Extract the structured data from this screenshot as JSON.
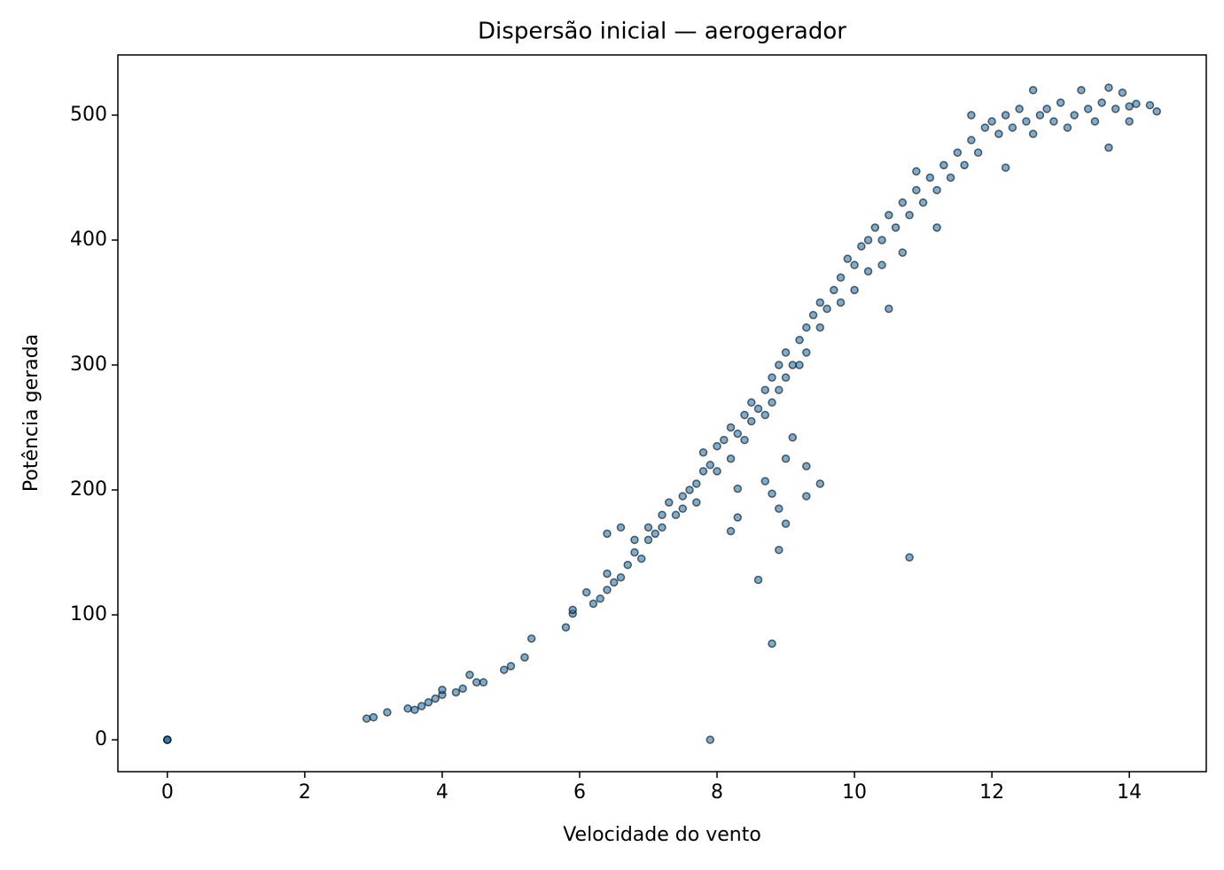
{
  "chart_data": {
    "type": "scatter",
    "title": "Dispersão inicial — aerogerador",
    "xlabel": "Velocidade do vento",
    "ylabel": "Potência gerada",
    "xlim": [
      -0.72,
      15.12
    ],
    "ylim": [
      -25.5,
      548.2
    ],
    "xticks": [
      0,
      2,
      4,
      6,
      8,
      10,
      12,
      14
    ],
    "yticks": [
      0,
      100,
      200,
      300,
      400,
      500
    ],
    "grid": false,
    "color": "#1f77b4",
    "edgecolor": "#000000",
    "x": [
      0,
      0,
      0,
      7.9,
      8.8,
      8.6,
      10.8,
      8.9,
      9.3,
      9.5,
      9.3,
      9.0,
      8.9,
      8.8,
      8.3,
      8.2,
      8.7,
      9.0,
      9.1,
      8.3,
      6.4,
      6.6,
      2.9,
      3.0,
      3.2,
      3.5,
      3.6,
      3.7,
      3.8,
      3.9,
      4.0,
      4.0,
      4.2,
      4.3,
      4.4,
      4.5,
      4.6,
      4.9,
      5.0,
      5.2,
      5.3,
      5.8,
      5.9,
      5.9,
      6.1,
      6.2,
      6.3,
      6.4,
      6.4,
      6.5,
      6.6,
      6.7,
      6.8,
      6.8,
      6.9,
      7.0,
      7.0,
      7.1,
      7.2,
      7.2,
      7.3,
      7.4,
      7.5,
      7.5,
      7.6,
      7.7,
      7.7,
      7.8,
      7.8,
      7.9,
      8.0,
      8.0,
      8.1,
      8.2,
      8.2,
      8.3,
      8.4,
      8.4,
      8.5,
      8.5,
      8.6,
      8.7,
      8.7,
      8.8,
      8.8,
      8.9,
      8.9,
      9.0,
      9.0,
      9.1,
      9.2,
      9.2,
      9.3,
      9.3,
      9.4,
      9.5,
      9.5,
      9.6,
      9.7,
      9.8,
      9.8,
      9.9,
      10.0,
      10.0,
      10.1,
      10.2,
      10.2,
      10.3,
      10.4,
      10.4,
      10.5,
      10.5,
      10.6,
      10.7,
      10.7,
      10.8,
      10.9,
      10.9,
      11.0,
      11.1,
      11.2,
      11.2,
      11.3,
      11.4,
      11.5,
      11.6,
      11.7,
      11.7,
      11.8,
      11.9,
      12.0,
      12.1,
      12.2,
      12.2,
      12.3,
      12.4,
      12.5,
      12.6,
      12.6,
      12.7,
      12.8,
      12.9,
      13.0,
      13.1,
      13.2,
      13.3,
      13.4,
      13.5,
      13.6,
      13.7,
      13.7,
      13.8,
      13.9,
      14.0,
      14.0,
      14.1,
      14.3,
      14.4
    ],
    "values": [
      0,
      0,
      0,
      0,
      77,
      128,
      146,
      152,
      195,
      205,
      219,
      173,
      185,
      197,
      178,
      167,
      207,
      225,
      242,
      201,
      165,
      170,
      17,
      18,
      22,
      25,
      24,
      27,
      30,
      33,
      36,
      40,
      38,
      41,
      52,
      46,
      46,
      56,
      59,
      66,
      81,
      90,
      101,
      104,
      118,
      109,
      113,
      120,
      133,
      126,
      130,
      140,
      150,
      160,
      145,
      160,
      170,
      165,
      180,
      170,
      190,
      180,
      195,
      185,
      200,
      205,
      190,
      215,
      230,
      220,
      235,
      215,
      240,
      225,
      250,
      245,
      260,
      240,
      270,
      255,
      265,
      280,
      260,
      290,
      270,
      300,
      280,
      310,
      290,
      300,
      320,
      300,
      330,
      310,
      340,
      330,
      350,
      345,
      360,
      350,
      370,
      385,
      380,
      360,
      395,
      400,
      375,
      410,
      400,
      380,
      420,
      345,
      410,
      430,
      390,
      420,
      440,
      455,
      430,
      450,
      440,
      410,
      460,
      450,
      470,
      460,
      480,
      500,
      470,
      490,
      495,
      485,
      500,
      458,
      490,
      505,
      495,
      520,
      485,
      500,
      505,
      495,
      510,
      490,
      500,
      520,
      505,
      495,
      510,
      522,
      474,
      505,
      518,
      507,
      495,
      509,
      508,
      503
    ]
  }
}
